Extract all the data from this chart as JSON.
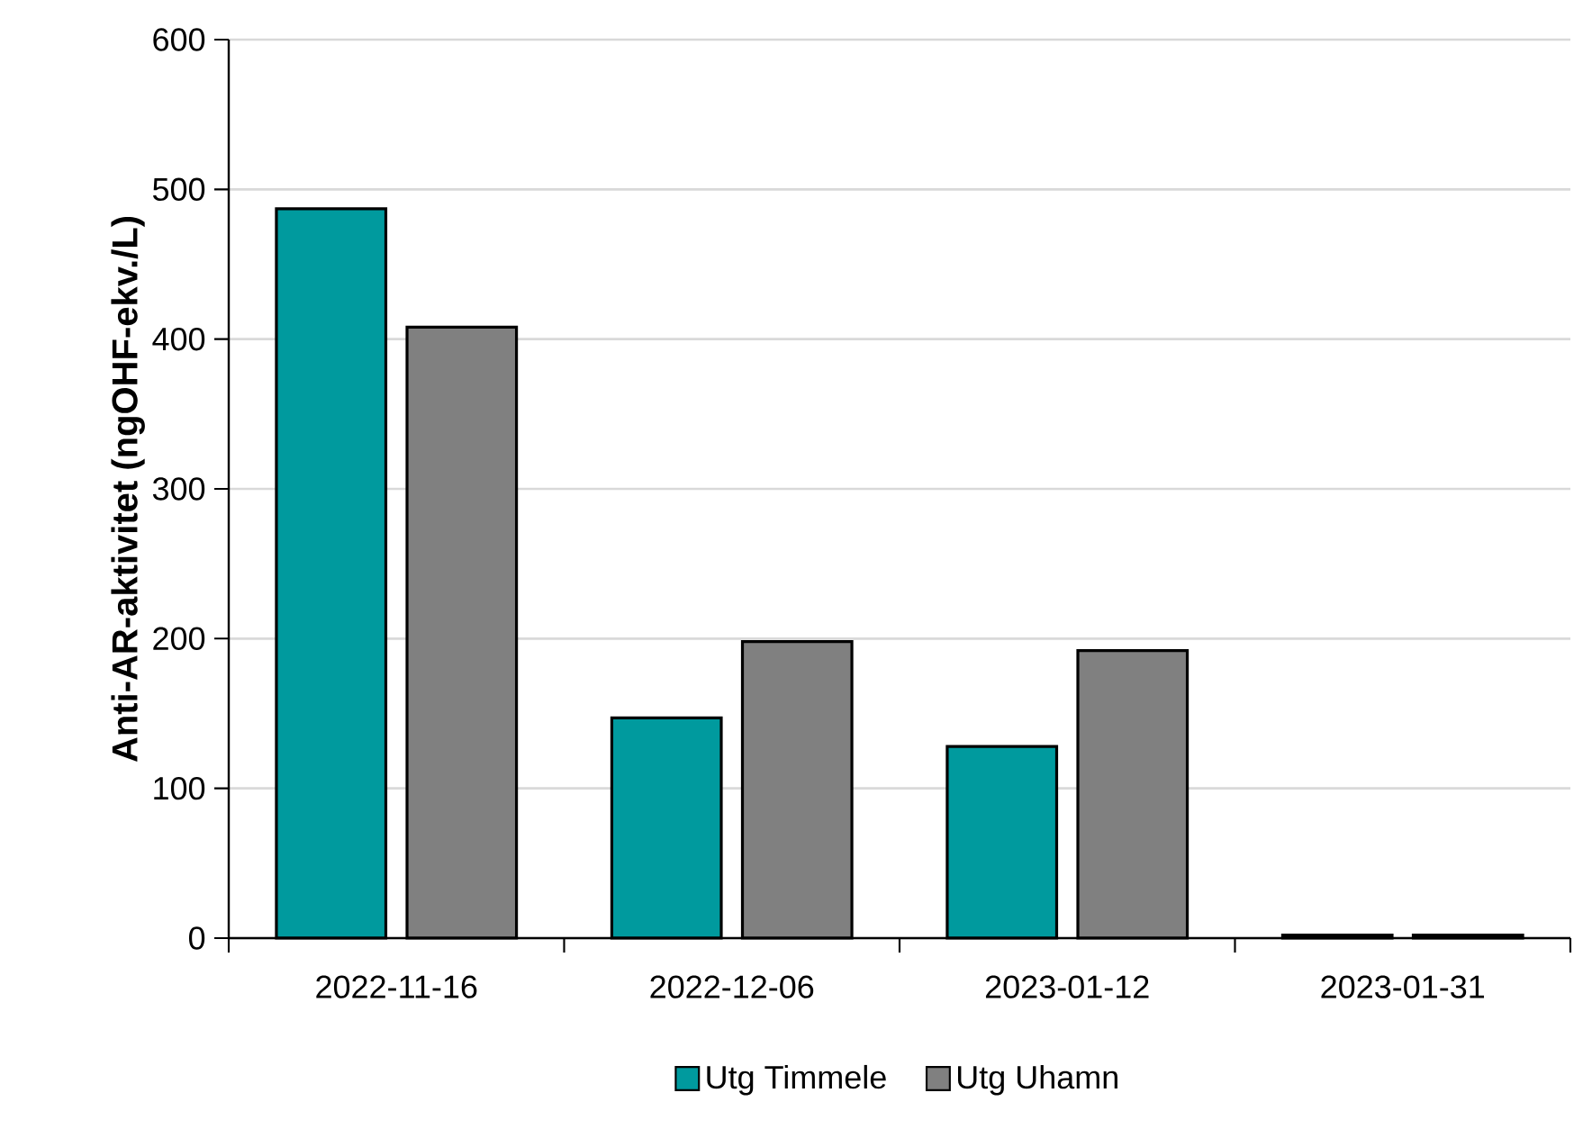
{
  "chart_data": {
    "type": "bar",
    "ylabel": "Anti-AR-aktivitet (ngOHF-ekv./L)",
    "categories": [
      "2022-11-16",
      "2022-12-06",
      "2023-01-12",
      "2023-01-31"
    ],
    "series": [
      {
        "name": "Utg Timmele",
        "color": "#009a9e",
        "values": [
          487,
          147,
          128,
          2
        ]
      },
      {
        "name": "Utg Uhamn",
        "color": "#808080",
        "values": [
          408,
          198,
          192,
          2
        ]
      }
    ],
    "ylim": [
      0,
      600
    ],
    "yticks": [
      0,
      100,
      200,
      300,
      400,
      500,
      600
    ],
    "grid": "y",
    "legend": "bottom"
  }
}
